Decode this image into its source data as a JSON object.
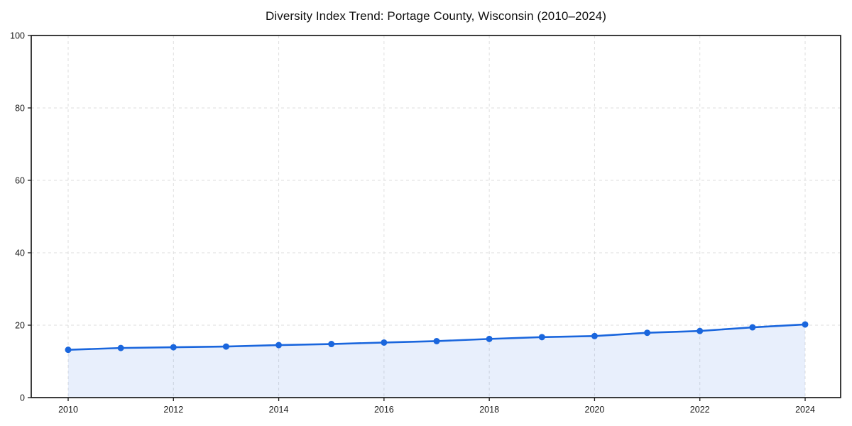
{
  "chart_data": {
    "type": "line",
    "title": "Diversity Index Trend: Portage County, Wisconsin (2010–2024)",
    "x": [
      2010,
      2011,
      2012,
      2013,
      2014,
      2015,
      2016,
      2017,
      2018,
      2019,
      2020,
      2021,
      2022,
      2023,
      2024
    ],
    "values": [
      13.2,
      13.7,
      13.9,
      14.1,
      14.5,
      14.8,
      15.2,
      15.6,
      16.2,
      16.7,
      17.0,
      17.9,
      18.4,
      19.4,
      20.2
    ],
    "xticks": [
      2010,
      2012,
      2014,
      2016,
      2018,
      2020,
      2022,
      2024
    ],
    "yticks": [
      0,
      20,
      40,
      60,
      80,
      100
    ],
    "ylim": [
      0,
      100
    ],
    "xlabel": "",
    "ylabel": "",
    "grid": true,
    "grid_style": "dashed",
    "legend": "none",
    "marker": "circle",
    "area_fill": true,
    "colors": {
      "line": "#1a66dd",
      "fill": "rgba(26, 102, 221, 0.10)",
      "grid": "#dedede",
      "axis": "#1a1a1a",
      "background": "#ffffff"
    }
  }
}
